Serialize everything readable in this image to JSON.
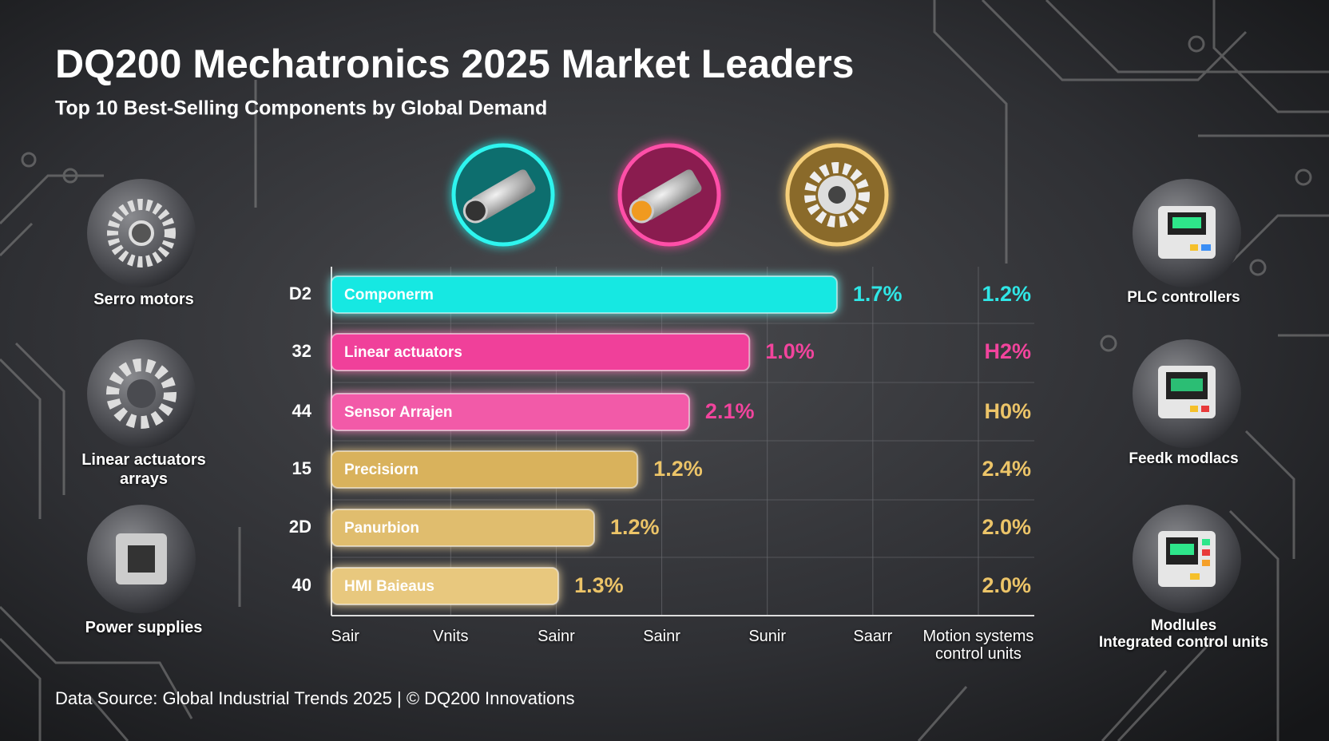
{
  "header": {
    "title": "DQ200 Mechatronics 2025 Market Leaders",
    "subtitle": "Top 10 Best-Selling Components by Global Demand"
  },
  "chart_data": {
    "type": "bar",
    "orientation": "horizontal",
    "categories": [
      "Componerm",
      "Linear actuators",
      "Sensor Arrajen",
      "Precisiorn",
      "Panurbion",
      "HMI Baieaus"
    ],
    "rank_labels": [
      "D2",
      "32",
      "44",
      "15",
      "2D",
      "40"
    ],
    "values": [
      4.66,
      3.83,
      3.26,
      2.77,
      2.36,
      2.02
    ],
    "colors": [
      "#19e8e2",
      "#f0409a",
      "#f25aa8",
      "#d9b25c",
      "#e0bd6e",
      "#e8c87e"
    ],
    "share_labels": [
      "1.7%",
      "1.0%",
      "2.1%",
      "1.2%",
      "1.2%",
      "1.3%"
    ],
    "share_colors": [
      "#2fe6e6",
      "#f2449d",
      "#f2449d",
      "#ecc468",
      "#ecc468",
      "#ecc468"
    ],
    "growth_labels": [
      "1.2%",
      "H2%",
      "H0%",
      "2.4%",
      "2.0%",
      "2.0%"
    ],
    "growth_colors": [
      "#2fe6e6",
      "#f2449d",
      "#ecc468",
      "#ecc468",
      "#ecc468",
      "#ecc468"
    ],
    "xlim": [
      -0.13,
      6.53
    ],
    "xticks": [
      {
        "value": 0,
        "label": "Sair"
      },
      {
        "value": 1,
        "label": "Vnits"
      },
      {
        "value": 2,
        "label": "Sainr"
      },
      {
        "value": 3,
        "label": "Sainr"
      },
      {
        "value": 4,
        "label": "Sunir"
      },
      {
        "value": 5,
        "label": "Saarr"
      },
      {
        "value": 6,
        "label": "Motion systems\ncontrol units"
      }
    ],
    "grid": true
  },
  "side_left": [
    {
      "label": "Serro motors"
    },
    {
      "label": "Linear actuators\narrays"
    },
    {
      "label": "Power supplies"
    }
  ],
  "side_right": [
    {
      "label": "PLC controllers"
    },
    {
      "label": "Feedk modlacs"
    },
    {
      "label": "Modlules\nIntegrated control units"
    }
  ],
  "footer": {
    "source": "Data Source: Global Industrial Trends 2025 | © DQ200 Innovations"
  }
}
